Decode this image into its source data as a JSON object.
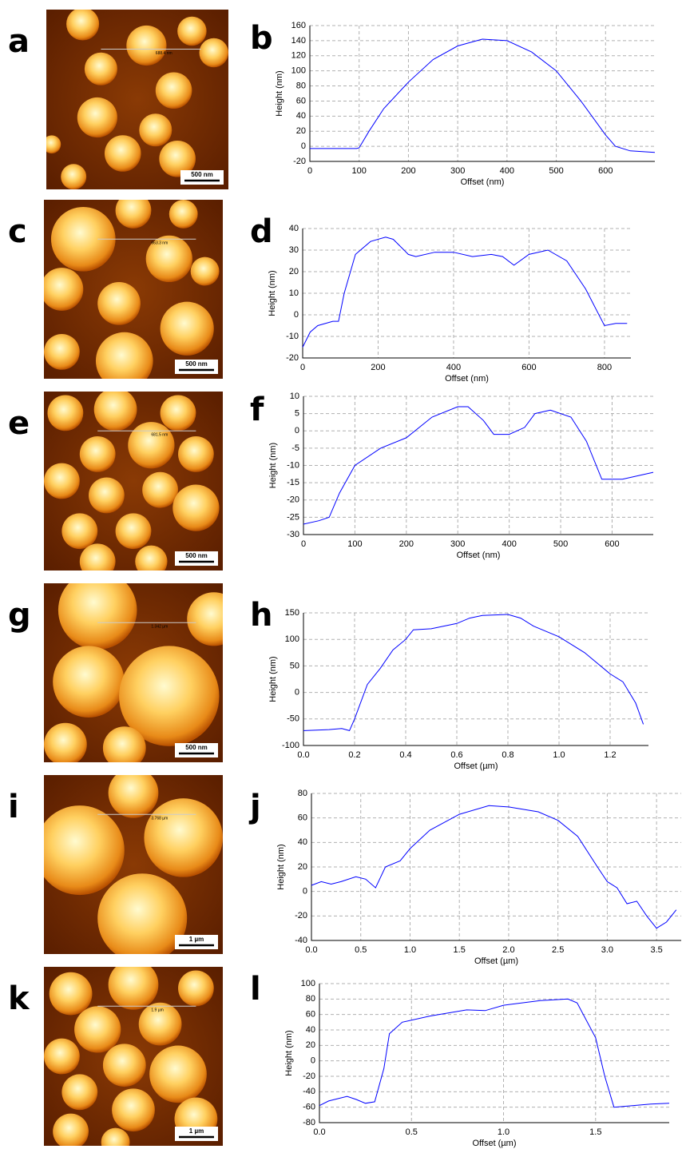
{
  "images": [
    {
      "panel_label": "a",
      "scale_bar": "500 nm",
      "measure": "688.4 nm"
    },
    {
      "panel_label": "c",
      "scale_bar": "500 nm",
      "measure": "663.3 nm"
    },
    {
      "panel_label": "e",
      "scale_bar": "500 nm",
      "measure": "681.5 nm"
    },
    {
      "panel_label": "g",
      "scale_bar": "500 nm",
      "measure": "1.342 µm"
    },
    {
      "panel_label": "i",
      "scale_bar": "1 µm",
      "measure": "3.768 µm"
    },
    {
      "panel_label": "k",
      "scale_bar": "1 µm",
      "measure": "1.9 µm"
    }
  ],
  "chart_data": [
    {
      "type": "line",
      "panel_label": "b",
      "xlabel": "Offset (nm)",
      "ylabel": "Height (nm)",
      "color": "#0000ff",
      "grid": true,
      "x": [
        0,
        50,
        95,
        100,
        120,
        150,
        200,
        250,
        300,
        350,
        400,
        450,
        500,
        550,
        600,
        620,
        650,
        700
      ],
      "values": [
        -3,
        -3,
        -3,
        -2,
        20,
        50,
        85,
        115,
        133,
        142,
        140,
        125,
        100,
        60,
        15,
        0,
        -6,
        -8
      ],
      "xlim": [
        0,
        700
      ],
      "xticks": [
        0,
        100,
        200,
        300,
        400,
        500,
        600
      ],
      "ylim": [
        -20,
        160
      ],
      "yticks": [
        -20,
        0,
        20,
        40,
        60,
        80,
        100,
        120,
        140,
        160
      ]
    },
    {
      "type": "line",
      "panel_label": "d",
      "xlabel": "Offset (nm)",
      "ylabel": "Height (nm)",
      "color": "#0000ff",
      "grid": true,
      "x": [
        0,
        20,
        40,
        80,
        95,
        110,
        140,
        180,
        220,
        240,
        280,
        300,
        350,
        400,
        450,
        500,
        530,
        560,
        600,
        650,
        700,
        750,
        800,
        830,
        860
      ],
      "values": [
        -15,
        -8,
        -5,
        -3,
        -3,
        10,
        28,
        34,
        36,
        35,
        28,
        27,
        29,
        29,
        27,
        28,
        27,
        23,
        28,
        30,
        25,
        12,
        -5,
        -4,
        -4
      ],
      "xlim": [
        0,
        870
      ],
      "xticks": [
        0,
        200,
        400,
        600,
        800
      ],
      "ylim": [
        -20,
        40
      ],
      "yticks": [
        -20,
        -10,
        0,
        10,
        20,
        30,
        40
      ]
    },
    {
      "type": "line",
      "panel_label": "f",
      "xlabel": "Offset (nm)",
      "ylabel": "Height (nm)",
      "color": "#0000ff",
      "grid": true,
      "x": [
        0,
        30,
        50,
        70,
        100,
        150,
        200,
        250,
        300,
        320,
        350,
        370,
        400,
        430,
        450,
        480,
        520,
        550,
        580,
        620,
        680
      ],
      "values": [
        -27,
        -26,
        -25,
        -18,
        -10,
        -5,
        -2,
        4,
        7,
        7,
        3,
        -1,
        -1,
        1,
        5,
        6,
        4,
        -3,
        -14,
        -14,
        -12
      ],
      "xlim": [
        0,
        680
      ],
      "xticks": [
        0,
        100,
        200,
        300,
        400,
        500,
        600
      ],
      "ylim": [
        -30,
        10
      ],
      "yticks": [
        -30,
        -25,
        -20,
        -15,
        -10,
        -5,
        0,
        5,
        10
      ]
    },
    {
      "type": "line",
      "panel_label": "h",
      "xlabel": "Offset (µm)",
      "ylabel": "Height (nm)",
      "color": "#0000ff",
      "grid": true,
      "x": [
        0,
        0.1,
        0.15,
        0.18,
        0.2,
        0.25,
        0.3,
        0.35,
        0.4,
        0.43,
        0.5,
        0.6,
        0.65,
        0.7,
        0.8,
        0.85,
        0.9,
        1.0,
        1.1,
        1.2,
        1.25,
        1.3,
        1.33
      ],
      "values": [
        -72,
        -70,
        -68,
        -72,
        -50,
        15,
        45,
        80,
        100,
        118,
        120,
        130,
        140,
        145,
        147,
        140,
        125,
        105,
        75,
        35,
        20,
        -20,
        -60
      ],
      "xlim": [
        0,
        1.35
      ],
      "xticks": [
        {
          "value": 0,
          "label": "0.0"
        },
        0.2,
        0.4,
        0.6,
        0.8,
        {
          "value": 1,
          "label": "1.0"
        },
        1.2
      ],
      "ylim": [
        -100,
        150
      ],
      "yticks": [
        -100,
        -50,
        0,
        50,
        100,
        150
      ]
    },
    {
      "type": "line",
      "panel_label": "j",
      "xlabel": "Offset (µm)",
      "ylabel": "Height (nm)",
      "color": "#0000ff",
      "grid": true,
      "x": [
        0,
        0.1,
        0.2,
        0.3,
        0.45,
        0.55,
        0.65,
        0.75,
        0.9,
        1.0,
        1.2,
        1.5,
        1.8,
        2.0,
        2.3,
        2.5,
        2.7,
        2.9,
        3.0,
        3.1,
        3.2,
        3.3,
        3.4,
        3.5,
        3.6,
        3.7
      ],
      "values": [
        5,
        8,
        6,
        8,
        12,
        10,
        3,
        20,
        25,
        35,
        50,
        63,
        70,
        69,
        65,
        58,
        45,
        20,
        8,
        3,
        -10,
        -8,
        -20,
        -30,
        -25,
        -15
      ],
      "xlim": [
        0,
        3.75
      ],
      "xticks": [
        {
          "value": 0,
          "label": "0.0"
        },
        0.5,
        {
          "value": 1,
          "label": "1.0"
        },
        1.5,
        {
          "value": 2,
          "label": "2.0"
        },
        2.5,
        {
          "value": 3,
          "label": "3.0"
        },
        3.5
      ],
      "ylim": [
        -40,
        80
      ],
      "yticks": [
        -40,
        -20,
        0,
        20,
        40,
        60,
        80
      ]
    },
    {
      "type": "line",
      "panel_label": "l",
      "xlabel": "Offset (µm)",
      "ylabel": "Height (nm)",
      "color": "#0000ff",
      "grid": true,
      "x": [
        0,
        0.05,
        0.15,
        0.2,
        0.25,
        0.3,
        0.35,
        0.38,
        0.45,
        0.6,
        0.8,
        0.9,
        1.0,
        1.2,
        1.35,
        1.4,
        1.5,
        1.55,
        1.6,
        1.7,
        1.8,
        1.9
      ],
      "values": [
        -58,
        -52,
        -46,
        -50,
        -55,
        -53,
        -10,
        35,
        50,
        58,
        66,
        65,
        72,
        78,
        80,
        75,
        30,
        -20,
        -60,
        -58,
        -56,
        -55
      ],
      "xlim": [
        0,
        1.9
      ],
      "xticks": [
        {
          "value": 0,
          "label": "0.0"
        },
        0.5,
        {
          "value": 1,
          "label": "1.0"
        },
        1.5
      ],
      "ylim": [
        -80,
        100
      ],
      "yticks": [
        -80,
        -60,
        -40,
        -20,
        0,
        20,
        40,
        60,
        80,
        100
      ]
    }
  ]
}
